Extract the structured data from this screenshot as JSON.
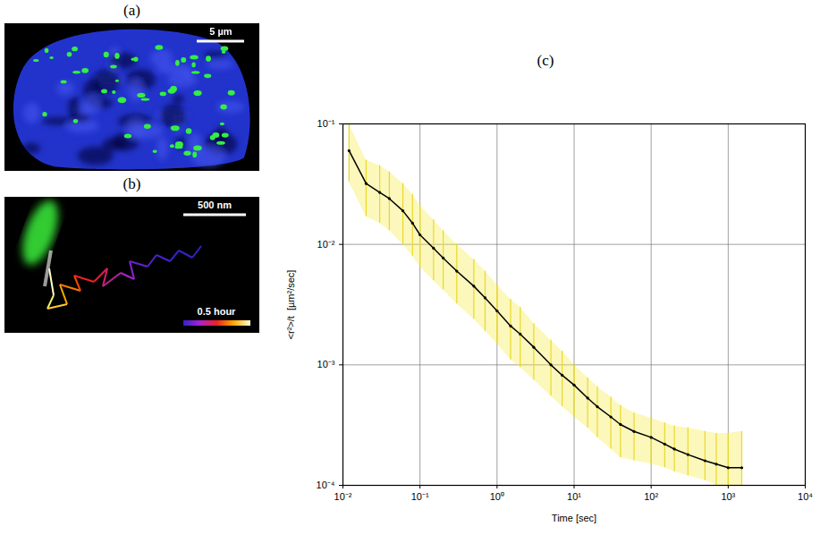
{
  "panels": [
    {
      "title": "(a)",
      "scale_bar": "5 µm"
    },
    {
      "title": "(b)",
      "scale_bar": "500 nm",
      "color_bar": "0.5 hour"
    }
  ],
  "chart_data": {
    "title": "(c)",
    "type": "scatter",
    "x_label": "Time [sec]",
    "y_label": "<r²>/t  [µm²/sec]",
    "log": true,
    "grid": true,
    "xlim": [
      0.01,
      10000
    ],
    "ylim": [
      0.0001,
      0.1
    ],
    "xticks": [
      {
        "value": 0.01,
        "label": "10⁻²"
      },
      {
        "value": 0.1,
        "label": "10⁻¹"
      },
      {
        "value": 1,
        "label": "10⁰"
      },
      {
        "value": 10,
        "label": "10¹"
      },
      {
        "value": 100,
        "label": "10²"
      },
      {
        "value": 1000,
        "label": "10³"
      },
      {
        "value": 10000,
        "label": "10⁴"
      }
    ],
    "yticks": [
      {
        "value": 0.0001,
        "label": "10⁻⁴"
      },
      {
        "value": 0.001,
        "label": "10⁻³"
      },
      {
        "value": 0.01,
        "label": "10⁻²"
      },
      {
        "value": 0.1,
        "label": "10⁻¹"
      }
    ],
    "x": [
      0.012,
      0.02,
      0.03,
      0.04,
      0.06,
      0.08,
      0.1,
      0.15,
      0.2,
      0.3,
      0.5,
      0.7,
      1,
      1.5,
      2,
      3,
      5,
      7,
      10,
      15,
      20,
      30,
      40,
      60,
      100,
      150,
      200,
      300,
      500,
      700,
      1000,
      1500
    ],
    "values": [
      0.06,
      0.032,
      0.027,
      0.024,
      0.019,
      0.015,
      0.012,
      0.0093,
      0.0077,
      0.006,
      0.0045,
      0.0036,
      0.0028,
      0.0021,
      0.0018,
      0.0014,
      0.001,
      0.00082,
      0.00068,
      0.00053,
      0.00045,
      0.00037,
      0.00032,
      0.00028,
      0.00025,
      0.00022,
      0.0002,
      0.00018,
      0.00016,
      0.00015,
      0.00014,
      0.00014
    ],
    "error_low": [
      0.033,
      0.017,
      0.015,
      0.013,
      0.01,
      0.008,
      0.0065,
      0.005,
      0.0042,
      0.0032,
      0.0024,
      0.0019,
      0.0015,
      0.0011,
      0.00095,
      0.00075,
      0.00055,
      0.00045,
      0.00037,
      0.0003,
      0.00025,
      0.0002,
      0.00017,
      0.00016,
      0.00015,
      0.00014,
      0.00013,
      0.00012,
      0.00011,
      0.0001,
      0.0001,
      0.0001
    ],
    "error_high": [
      0.1,
      0.05,
      0.045,
      0.04,
      0.032,
      0.026,
      0.021,
      0.016,
      0.013,
      0.01,
      0.0075,
      0.006,
      0.0046,
      0.0035,
      0.003,
      0.0022,
      0.0016,
      0.0013,
      0.001,
      0.00078,
      0.00066,
      0.00054,
      0.00046,
      0.0004,
      0.00036,
      0.00033,
      0.00031,
      0.0003,
      0.00028,
      0.00027,
      0.00027,
      0.00028
    ],
    "color": "#000000",
    "marker": "dot",
    "line_style": "solid"
  }
}
